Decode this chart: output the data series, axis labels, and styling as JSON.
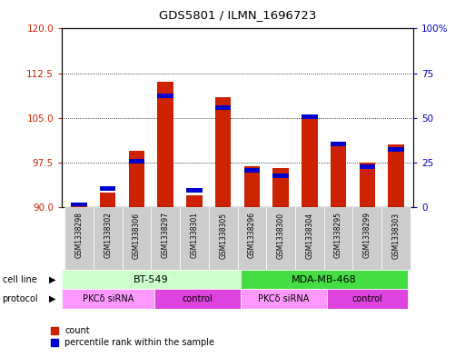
{
  "title": "GDS5801 / ILMN_1696723",
  "samples": [
    "GSM1338298",
    "GSM1338302",
    "GSM1338306",
    "GSM1338297",
    "GSM1338301",
    "GSM1338305",
    "GSM1338296",
    "GSM1338300",
    "GSM1338304",
    "GSM1338295",
    "GSM1338299",
    "GSM1338303"
  ],
  "red_values": [
    90.3,
    92.5,
    99.5,
    111.0,
    92.0,
    108.5,
    96.8,
    96.5,
    105.5,
    100.5,
    97.5,
    100.5
  ],
  "blue_values": [
    1.0,
    10.0,
    25.0,
    62.0,
    9.0,
    55.0,
    20.0,
    17.0,
    50.0,
    35.0,
    22.0,
    32.0
  ],
  "ymin": 90,
  "ymax": 120,
  "yticks_left": [
    90,
    97.5,
    105,
    112.5,
    120
  ],
  "yticks_right": [
    0,
    25,
    50,
    75,
    100
  ],
  "bar_color": "#cc2200",
  "dot_color": "#0000cc",
  "bg_color": "#d3d3d3",
  "plot_bg": "#ffffff",
  "left_axis_color": "#cc2200",
  "right_axis_color": "#0000cc",
  "cell_line_bt549_color": "#ccffcc",
  "cell_line_mda_color": "#44dd44",
  "protocol_pkcd_color": "#ff99ff",
  "protocol_ctrl_color": "#dd44dd",
  "sample_bg_color": "#cccccc"
}
